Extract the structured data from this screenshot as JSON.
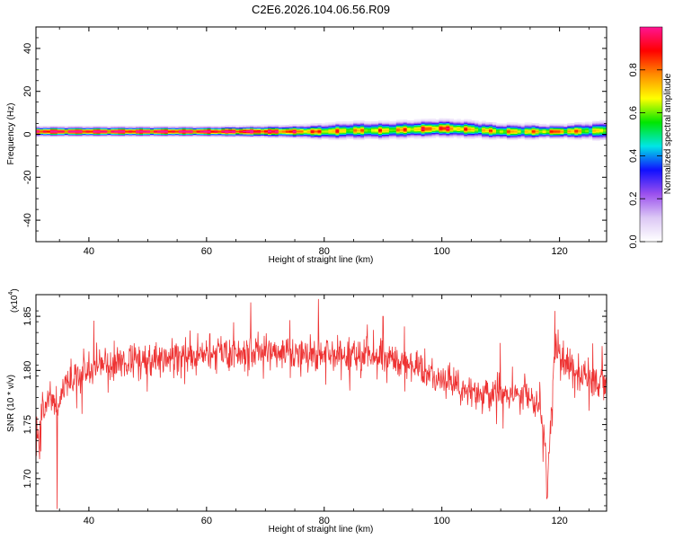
{
  "title": "C2E6.2026.104.06.56.R09",
  "chart_data": [
    {
      "type": "heatmap",
      "name": "spectrogram",
      "xlabel": "Height of straight line (km)",
      "ylabel": "Frequency (Hz)",
      "xlim": [
        31,
        128
      ],
      "ylim": [
        -50,
        50
      ],
      "xticks": [
        40,
        60,
        80,
        100,
        120
      ],
      "xtick_labels": [
        "40",
        "60",
        "80",
        "100",
        "120"
      ],
      "yticks": [
        -40,
        -20,
        0,
        20,
        40
      ],
      "ytick_labels": [
        "-40",
        "-20",
        "0",
        "20",
        "40"
      ],
      "colorbar": {
        "label": "Normalized spectral amplitude",
        "range": [
          0.0,
          1.0
        ],
        "ticks": [
          0.0,
          0.2,
          0.4,
          0.6,
          0.8
        ],
        "tick_labels": [
          "0.0",
          "0.2",
          "0.4",
          "0.6",
          "0.8"
        ],
        "colors": [
          "#ffffff",
          "#dcc8f5",
          "#9b50ee",
          "#1010ff",
          "#00e6e6",
          "#00e600",
          "#ffff00",
          "#ff8c00",
          "#ff0000",
          "#ff1493"
        ]
      },
      "band": {
        "center_height_km": [
          31,
          40,
          50,
          60,
          68,
          75,
          80,
          85,
          90,
          95,
          100,
          105,
          110,
          115,
          118,
          120,
          125,
          128
        ],
        "center_freq_hz": [
          1.5,
          1.5,
          1.5,
          1.5,
          1.5,
          1.5,
          1.5,
          2.0,
          2.0,
          2.5,
          3.0,
          2.5,
          1.5,
          1.5,
          1.5,
          1.5,
          1.8,
          2.0
        ],
        "half_width_hz": [
          2.5,
          2.5,
          2.5,
          2.5,
          2.8,
          3.2,
          4.0,
          4.5,
          4.5,
          4.5,
          4.5,
          4.5,
          4.0,
          4.0,
          3.5,
          3.5,
          4.5,
          5.0
        ],
        "peak_amplitude": [
          1.0,
          1.0,
          1.0,
          1.0,
          1.0,
          0.85,
          0.75,
          0.7,
          0.7,
          0.75,
          0.85,
          0.7,
          0.7,
          0.7,
          0.75,
          0.8,
          0.65,
          0.6
        ]
      }
    },
    {
      "type": "line",
      "name": "snr",
      "xlabel": "Height of straight line (km)",
      "ylabel": "SNR (10 * v/v)",
      "yscale_label": "(x10",
      "yscale_exp": "4",
      "yscale_close": ")",
      "xlim": [
        31,
        128
      ],
      "ylim": [
        1.67,
        1.87
      ],
      "xticks": [
        40,
        60,
        80,
        100,
        120
      ],
      "xtick_labels": [
        "40",
        "60",
        "80",
        "100",
        "120"
      ],
      "yticks": [
        1.7,
        1.75,
        1.8,
        1.85
      ],
      "ytick_labels": [
        "1.70",
        "1.75",
        "1.80",
        "1.85"
      ],
      "color": "#ee3333",
      "trend": {
        "x": [
          31,
          32,
          33,
          34,
          35,
          36,
          38,
          40,
          45,
          50,
          55,
          60,
          65,
          70,
          75,
          80,
          85,
          90,
          95,
          100,
          105,
          110,
          114,
          116,
          117,
          117.5,
          118,
          118.5,
          119,
          119.5,
          120,
          122,
          125,
          128
        ],
        "y": [
          1.735,
          1.75,
          1.775,
          1.765,
          1.775,
          1.785,
          1.795,
          1.8,
          1.805,
          1.81,
          1.812,
          1.815,
          1.816,
          1.818,
          1.818,
          1.815,
          1.815,
          1.812,
          1.805,
          1.79,
          1.78,
          1.775,
          1.778,
          1.77,
          1.755,
          1.73,
          1.7,
          1.745,
          1.8,
          1.825,
          1.815,
          1.8,
          1.795,
          1.79
        ]
      },
      "noise_amplitude": 0.012,
      "notable_points": [
        {
          "x": 34.6,
          "y": 1.672
        },
        {
          "x": 31.6,
          "y": 1.718
        },
        {
          "x": 117.9,
          "y": 1.682
        },
        {
          "x": 119.2,
          "y": 1.855
        },
        {
          "x": 79.0,
          "y": 1.866
        },
        {
          "x": 90.0,
          "y": 1.85
        }
      ],
      "seed": 20260104
    }
  ]
}
